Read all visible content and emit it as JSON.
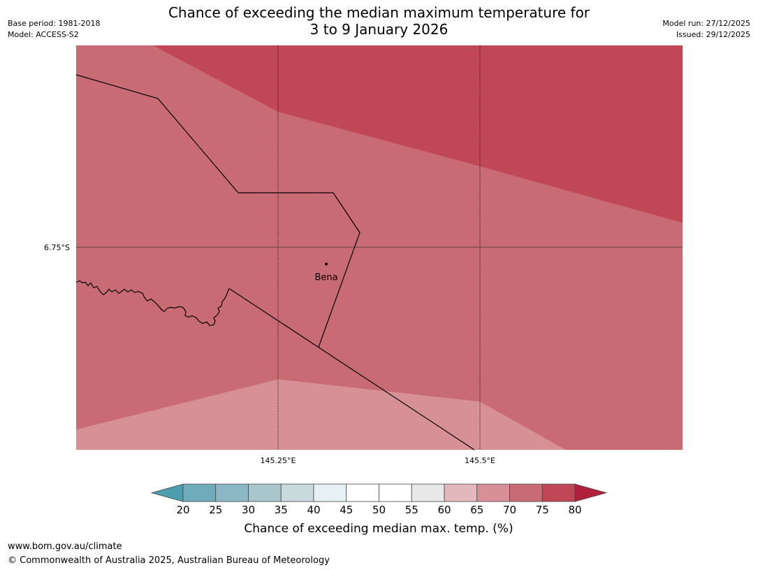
{
  "title": {
    "line1": "Chance of exceeding the median maximum temperature for",
    "line2": "3 to 9 January 2026"
  },
  "meta_left": {
    "base_period": "Base period: 1981-2018",
    "model": "Model: ACCESS-S2"
  },
  "meta_right": {
    "model_run": "Model run: 27/12/2025",
    "issued": "Issued: 29/12/2025"
  },
  "map": {
    "lat_label": "6.75°S",
    "lon_labels": [
      "145.25°E",
      "145.5°E"
    ],
    "place": "Bena",
    "region_colors": {
      "band_80": "#c04856",
      "band_75": "#c96b74",
      "band_70": "#d69096"
    }
  },
  "colorbar": {
    "ticks": [
      "20",
      "25",
      "30",
      "35",
      "40",
      "45",
      "50",
      "55",
      "60",
      "65",
      "70",
      "75",
      "80"
    ],
    "colors": [
      "#4d9eae",
      "#6eabbb",
      "#8cb8c5",
      "#a8c6cc",
      "#c9dadd",
      "#e7f0f2",
      "#ffffff",
      "#ffffff",
      "#e8e8e8",
      "#e3b8bc",
      "#d69096",
      "#c96b74",
      "#c04856",
      "#b0203a"
    ],
    "label": "Chance of exceeding median max. temp. (%)"
  },
  "footer": {
    "url": "www.bom.gov.au/climate",
    "copyright": "© Commonwealth of Australia 2025, Australian Bureau of Meteorology"
  }
}
